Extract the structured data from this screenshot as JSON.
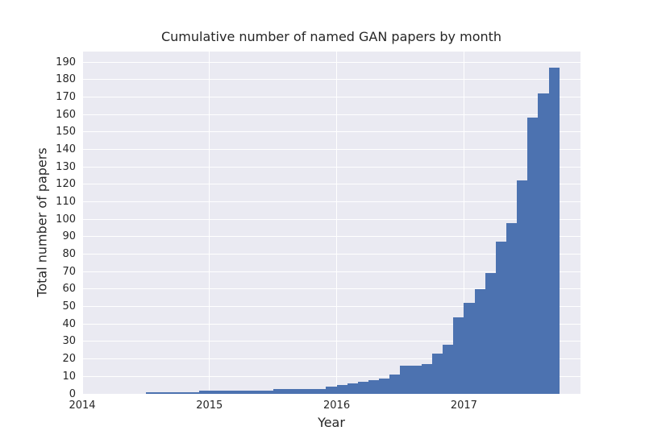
{
  "chart_data": {
    "type": "bar",
    "title": "Cumulative number of named GAN papers by month",
    "xlabel": "Year",
    "ylabel": "Total number of papers",
    "x_tick_years": [
      "2014",
      "2015",
      "2016",
      "2017"
    ],
    "y_ticks": [
      0,
      10,
      20,
      30,
      40,
      50,
      60,
      70,
      80,
      90,
      100,
      110,
      120,
      130,
      140,
      150,
      160,
      170,
      180,
      190
    ],
    "ylim": [
      0,
      196
    ],
    "x_range_months": [
      "2014-01",
      "2017-12"
    ],
    "grid": true,
    "legend_position": "none",
    "colors": {
      "bar": "#4C72B0",
      "plot_background": "#EAEAF2",
      "grid": "#FFFFFF",
      "figure_background": "#FFFFFF",
      "text": "#262626"
    },
    "series": [
      {
        "x": [
          "2014-07",
          "2014-08",
          "2014-09",
          "2014-10",
          "2014-11",
          "2014-12",
          "2015-01",
          "2015-02",
          "2015-03",
          "2015-04",
          "2015-05",
          "2015-06",
          "2015-07",
          "2015-08",
          "2015-09",
          "2015-10",
          "2015-11",
          "2015-12",
          "2016-01",
          "2016-02",
          "2016-03",
          "2016-04",
          "2016-05",
          "2016-06",
          "2016-07",
          "2016-08",
          "2016-09",
          "2016-10",
          "2016-11",
          "2016-12",
          "2017-01",
          "2017-02",
          "2017-03",
          "2017-04",
          "2017-05",
          "2017-06",
          "2017-07",
          "2017-08",
          "2017-09"
        ],
        "values": [
          1,
          1,
          1,
          1,
          1,
          2,
          2,
          2,
          2,
          2,
          2,
          2,
          3,
          3,
          3,
          3,
          3,
          4,
          5,
          6,
          7,
          8,
          9,
          11,
          16,
          16,
          17,
          23,
          28,
          44,
          52,
          60,
          69,
          87,
          98,
          122,
          158,
          172,
          187
        ]
      }
    ]
  }
}
